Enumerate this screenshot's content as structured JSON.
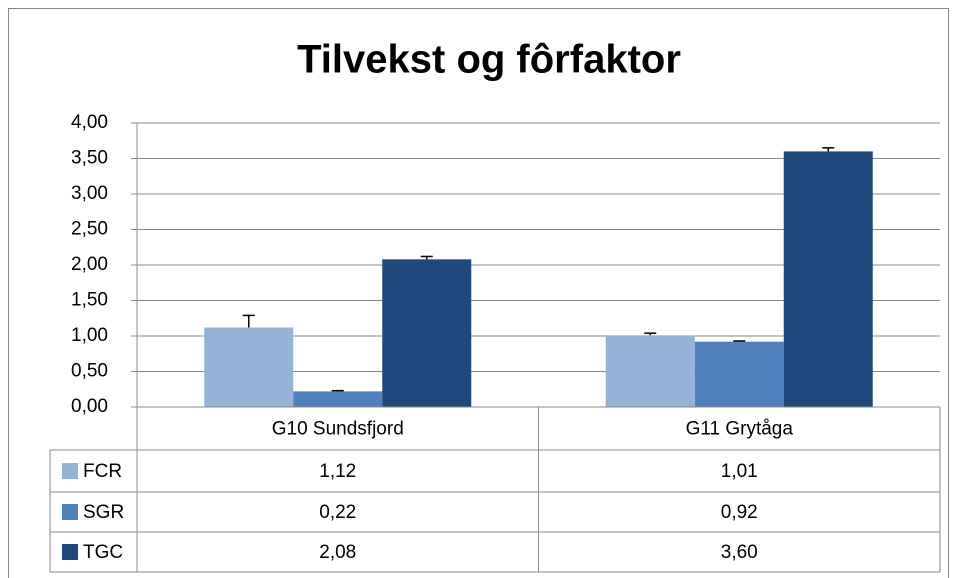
{
  "chart_data": {
    "type": "bar",
    "title": "Tilvekst og fôrfaktor",
    "categories": [
      "G10 Sundsfjord",
      "G11 Grytåga"
    ],
    "series": [
      {
        "name": "FCR",
        "color": "#95b3d7",
        "values": [
          1.12,
          1.01
        ],
        "value_labels": [
          "1,12",
          "1,01"
        ],
        "errors": [
          0.17,
          0.03
        ]
      },
      {
        "name": "SGR",
        "color": "#4f81bd",
        "values": [
          0.22,
          0.92
        ],
        "value_labels": [
          "0,22",
          "0,92"
        ],
        "errors": [
          0.01,
          0.01
        ]
      },
      {
        "name": "TGC",
        "color": "#1f497d",
        "values": [
          2.08,
          3.6
        ],
        "value_labels": [
          "2,08",
          "3,60"
        ],
        "errors": [
          0.04,
          0.05
        ]
      }
    ],
    "ylim": [
      0,
      4
    ],
    "yticks": [
      {
        "value": 0,
        "label": "0,00"
      },
      {
        "value": 0.5,
        "label": "0,50"
      },
      {
        "value": 1,
        "label": "1,00"
      },
      {
        "value": 1.5,
        "label": "1,50"
      },
      {
        "value": 2,
        "label": "2,00"
      },
      {
        "value": 2.5,
        "label": "2,50"
      },
      {
        "value": 3,
        "label": "3,00"
      },
      {
        "value": 3.5,
        "label": "3,50"
      },
      {
        "value": 4,
        "label": "4,00"
      }
    ],
    "grid": true
  }
}
